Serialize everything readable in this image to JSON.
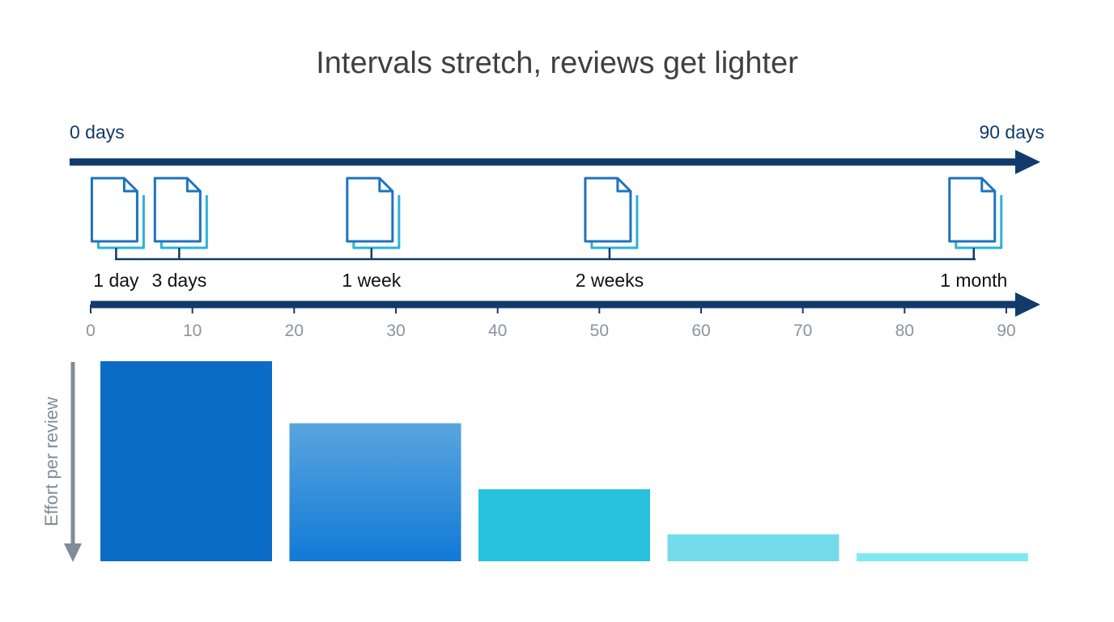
{
  "title": "Intervals stretch, reviews get lighter",
  "top_timeline": {
    "start_label": "0 days",
    "end_label": "90 days"
  },
  "reviews": [
    {
      "label": "1 day",
      "day": 2.5
    },
    {
      "label": "3 days",
      "day": 8.7
    },
    {
      "label": "1 week",
      "day": 27.6
    },
    {
      "label": "2 weeks",
      "day": 51.0
    },
    {
      "label": "1 month",
      "day": 86.8
    }
  ],
  "scale": {
    "ticks": [
      "0",
      "10",
      "20",
      "30",
      "40",
      "50",
      "60",
      "70",
      "80",
      "90"
    ],
    "min": 0,
    "max": 90
  },
  "chart_data": {
    "type": "bar",
    "ylabel": "Effort per review",
    "values": [
      100,
      69,
      36,
      13.5,
      4
    ],
    "colors": [
      "#0a6cc6",
      "#3a92db",
      "#27c1dd",
      "#74dbea",
      "#80e8f5"
    ]
  },
  "colors": {
    "title": "#404040",
    "navy": "#123a6b",
    "doc_front": "#1e73be",
    "doc_back": "#2ab3d6",
    "tick_text": "#8a94a0",
    "effort_arrow": "#808c98"
  }
}
